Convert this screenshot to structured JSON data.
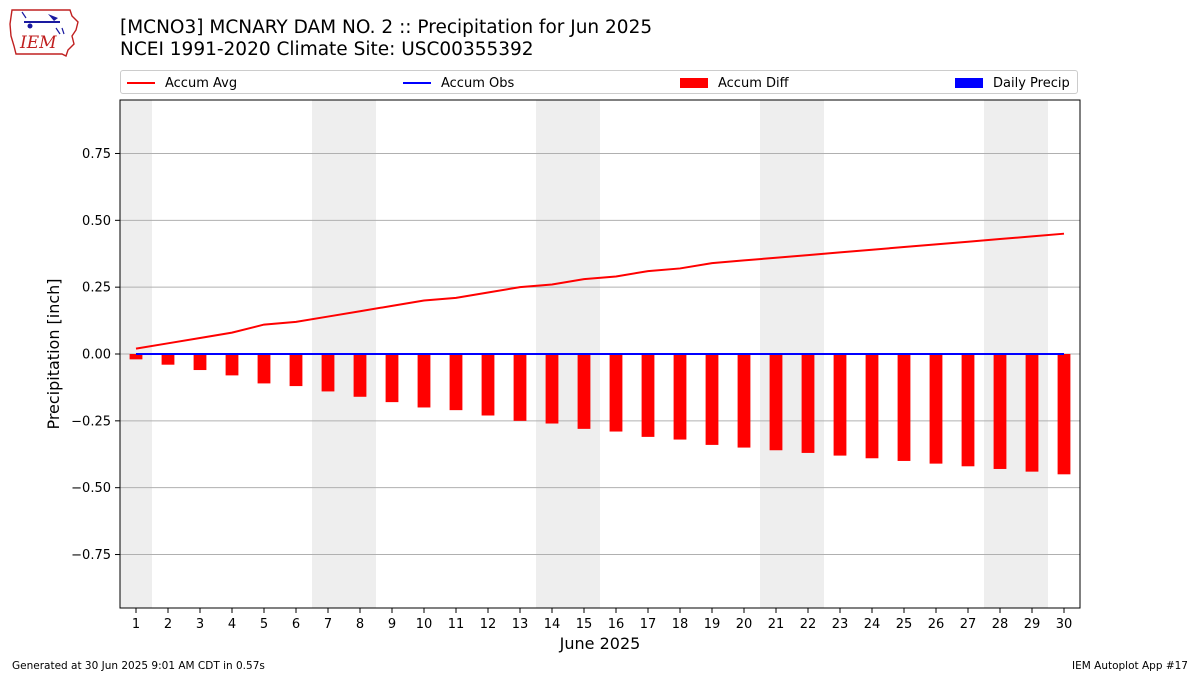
{
  "logo": {
    "text": "IEM",
    "icon": "iowa-state-outline-with-weather-symbols"
  },
  "header": {
    "title_line1": "[MCNO3] MCNARY DAM NO. 2 :: Precipitation for Jun 2025",
    "title_line2": "NCEI 1991-2020 Climate Site: USC00355392"
  },
  "legend": {
    "items": [
      {
        "label": "Accum Avg",
        "color": "#ff0000",
        "kind": "line"
      },
      {
        "label": "Accum Obs",
        "color": "#0000ff",
        "kind": "line"
      },
      {
        "label": "Accum Diff",
        "color": "#ff0000",
        "kind": "patch"
      },
      {
        "label": "Daily Precip",
        "color": "#0000ff",
        "kind": "patch"
      }
    ]
  },
  "footer": {
    "left": "Generated at 30 Jun 2025 9:01 AM CDT in 0.57s",
    "right": "IEM Autoplot App #17"
  },
  "colors": {
    "weekend_shade": "#eeeeee",
    "grid": "#b0b0b0",
    "avg": "#ff0000",
    "obs": "#0000ff",
    "diff": "#ff0000"
  },
  "chart_data": {
    "type": "bar",
    "xlabel": "June 2025",
    "ylabel": "Precipitation [inch]",
    "ylim": [
      -0.95,
      0.95
    ],
    "yticks": [
      -0.75,
      -0.5,
      -0.25,
      0.0,
      0.25,
      0.5,
      0.75
    ],
    "ytick_labels": [
      "−0.75",
      "−0.50",
      "−0.25",
      "0.00",
      "0.25",
      "0.50",
      "0.75"
    ],
    "xlim": [
      0.5,
      30.5
    ],
    "days": [
      1,
      2,
      3,
      4,
      5,
      6,
      7,
      8,
      9,
      10,
      11,
      12,
      13,
      14,
      15,
      16,
      17,
      18,
      19,
      20,
      21,
      22,
      23,
      24,
      25,
      26,
      27,
      28,
      29,
      30
    ],
    "weekend_spans": [
      [
        0.5,
        1.5
      ],
      [
        6.5,
        8.5
      ],
      [
        13.5,
        15.5
      ],
      [
        20.5,
        22.5
      ],
      [
        27.5,
        29.5
      ]
    ],
    "grid": "horizontal",
    "series": [
      {
        "name": "Accum Avg",
        "kind": "line",
        "values": [
          0.02,
          0.04,
          0.06,
          0.08,
          0.11,
          0.12,
          0.14,
          0.16,
          0.18,
          0.2,
          0.21,
          0.23,
          0.25,
          0.26,
          0.28,
          0.29,
          0.31,
          0.32,
          0.34,
          0.35,
          0.36,
          0.37,
          0.38,
          0.39,
          0.4,
          0.41,
          0.42,
          0.43,
          0.44,
          0.45
        ]
      },
      {
        "name": "Accum Obs",
        "kind": "line",
        "values": [
          0,
          0,
          0,
          0,
          0,
          0,
          0,
          0,
          0,
          0,
          0,
          0,
          0,
          0,
          0,
          0,
          0,
          0,
          0,
          0,
          0,
          0,
          0,
          0,
          0,
          0,
          0,
          0,
          0,
          0
        ]
      },
      {
        "name": "Accum Diff",
        "kind": "bar",
        "values": [
          -0.02,
          -0.04,
          -0.06,
          -0.08,
          -0.11,
          -0.12,
          -0.14,
          -0.16,
          -0.18,
          -0.2,
          -0.21,
          -0.23,
          -0.25,
          -0.26,
          -0.28,
          -0.29,
          -0.31,
          -0.32,
          -0.34,
          -0.35,
          -0.36,
          -0.37,
          -0.38,
          -0.39,
          -0.4,
          -0.41,
          -0.42,
          -0.43,
          -0.44,
          -0.45
        ]
      },
      {
        "name": "Daily Precip",
        "kind": "bar",
        "values": [
          0,
          0,
          0,
          0,
          0,
          0,
          0,
          0,
          0,
          0,
          0,
          0,
          0,
          0,
          0,
          0,
          0,
          0,
          0,
          0,
          0,
          0,
          0,
          0,
          0,
          0,
          0,
          0,
          0,
          0
        ]
      }
    ]
  }
}
